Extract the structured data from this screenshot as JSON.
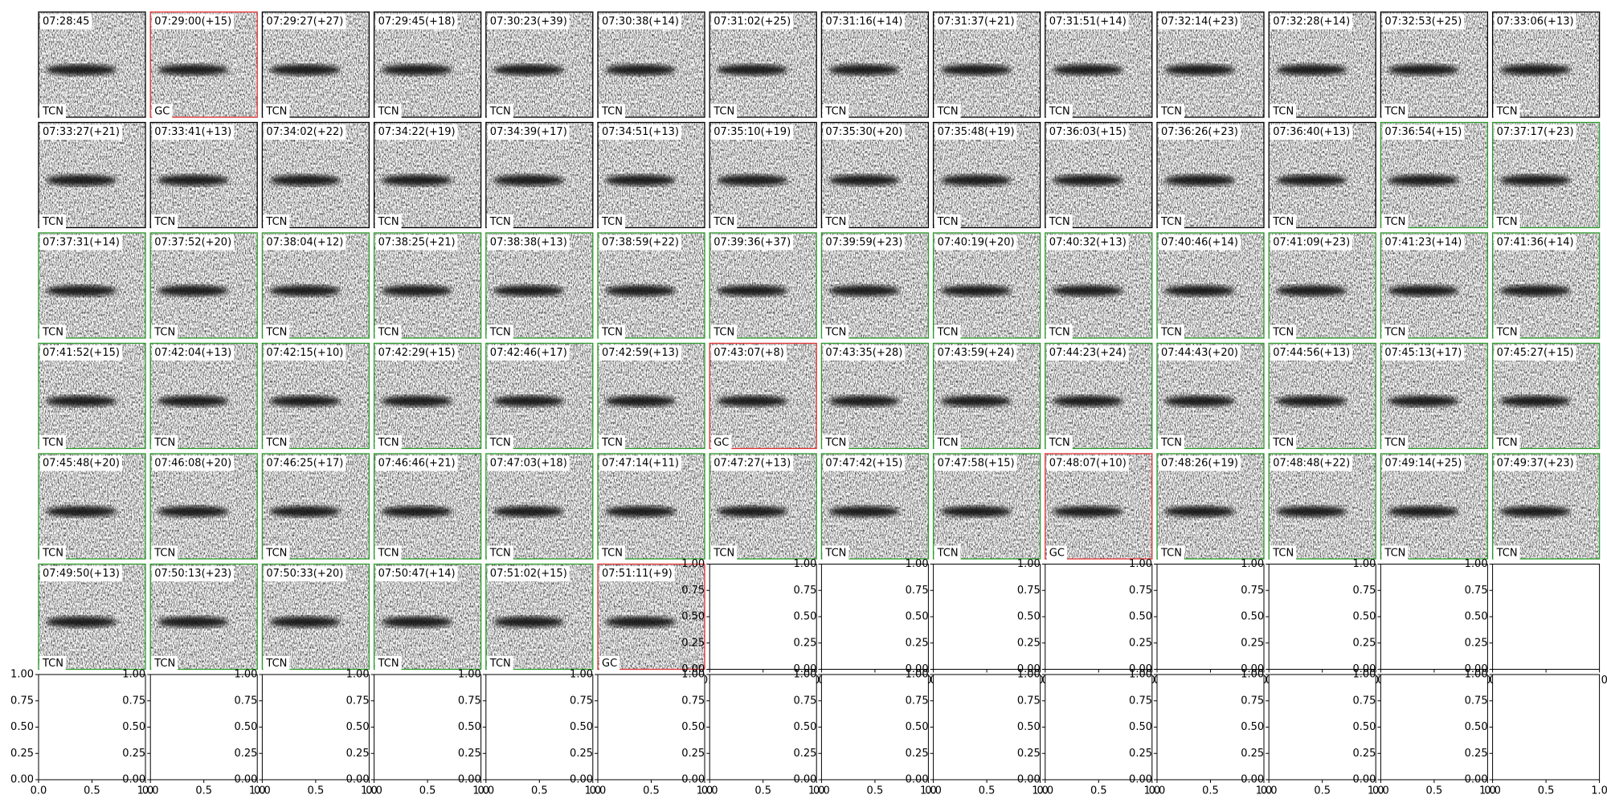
{
  "panels": [
    [
      "07:28:45",
      "TCN",
      "black"
    ],
    [
      "07:29:00(+15)",
      "GC",
      "red"
    ],
    [
      "07:29:27(+27)",
      "TCN",
      "black"
    ],
    [
      "07:29:45(+18)",
      "TCN",
      "black"
    ],
    [
      "07:30:23(+39)",
      "TCN",
      "black"
    ],
    [
      "07:30:38(+14)",
      "TCN",
      "black"
    ],
    [
      "07:31:02(+25)",
      "TCN",
      "black"
    ],
    [
      "07:31:16(+14)",
      "TCN",
      "black"
    ],
    [
      "07:31:37(+21)",
      "TCN",
      "black"
    ],
    [
      "07:31:51(+14)",
      "TCN",
      "black"
    ],
    [
      "07:32:14(+23)",
      "TCN",
      "black"
    ],
    [
      "07:32:28(+14)",
      "TCN",
      "black"
    ],
    [
      "07:32:53(+25)",
      "TCN",
      "black"
    ],
    [
      "07:33:06(+13)",
      "TCN",
      "black"
    ],
    [
      "07:33:27(+21)",
      "TCN",
      "black"
    ],
    [
      "07:33:41(+13)",
      "TCN",
      "black"
    ],
    [
      "07:34:02(+22)",
      "TCN",
      "black"
    ],
    [
      "07:34:22(+19)",
      "TCN",
      "black"
    ],
    [
      "07:34:39(+17)",
      "TCN",
      "black"
    ],
    [
      "07:34:51(+13)",
      "TCN",
      "black"
    ],
    [
      "07:35:10(+19)",
      "TCN",
      "black"
    ],
    [
      "07:35:30(+20)",
      "TCN",
      "black"
    ],
    [
      "07:35:48(+19)",
      "TCN",
      "black"
    ],
    [
      "07:36:03(+15)",
      "TCN",
      "black"
    ],
    [
      "07:36:26(+23)",
      "TCN",
      "black"
    ],
    [
      "07:36:40(+13)",
      "TCN",
      "black"
    ],
    [
      "07:36:54(+15)",
      "TCN",
      "green"
    ],
    [
      "07:37:17(+23)",
      "TCN",
      "green"
    ],
    [
      "07:37:31(+14)",
      "TCN",
      "green"
    ],
    [
      "07:37:52(+20)",
      "TCN",
      "green"
    ],
    [
      "07:38:04(+12)",
      "TCN",
      "green"
    ],
    [
      "07:38:25(+21)",
      "TCN",
      "green"
    ],
    [
      "07:38:38(+13)",
      "TCN",
      "green"
    ],
    [
      "07:38:59(+22)",
      "TCN",
      "green"
    ],
    [
      "07:39:36(+37)",
      "TCN",
      "green"
    ],
    [
      "07:39:59(+23)",
      "TCN",
      "green"
    ],
    [
      "07:40:19(+20)",
      "TCN",
      "green"
    ],
    [
      "07:40:32(+13)",
      "TCN",
      "green"
    ],
    [
      "07:40:46(+14)",
      "TCN",
      "green"
    ],
    [
      "07:41:09(+23)",
      "TCN",
      "green"
    ],
    [
      "07:41:23(+14)",
      "TCN",
      "green"
    ],
    [
      "07:41:36(+14)",
      "TCN",
      "green"
    ],
    [
      "07:41:52(+15)",
      "TCN",
      "green"
    ],
    [
      "07:42:04(+13)",
      "TCN",
      "green"
    ],
    [
      "07:42:15(+10)",
      "TCN",
      "green"
    ],
    [
      "07:42:29(+15)",
      "TCN",
      "green"
    ],
    [
      "07:42:46(+17)",
      "TCN",
      "green"
    ],
    [
      "07:42:59(+13)",
      "TCN",
      "green"
    ],
    [
      "07:43:07(+8)",
      "GC",
      "red"
    ],
    [
      "07:43:35(+28)",
      "TCN",
      "green"
    ],
    [
      "07:43:59(+24)",
      "TCN",
      "green"
    ],
    [
      "07:44:23(+24)",
      "TCN",
      "green"
    ],
    [
      "07:44:43(+20)",
      "TCN",
      "green"
    ],
    [
      "07:44:56(+13)",
      "TCN",
      "green"
    ],
    [
      "07:45:13(+17)",
      "TCN",
      "green"
    ],
    [
      "07:45:27(+15)",
      "TCN",
      "green"
    ],
    [
      "07:45:48(+20)",
      "TCN",
      "green"
    ],
    [
      "07:46:08(+20)",
      "TCN",
      "green"
    ],
    [
      "07:46:25(+17)",
      "TCN",
      "green"
    ],
    [
      "07:46:46(+21)",
      "TCN",
      "green"
    ],
    [
      "07:47:03(+18)",
      "TCN",
      "green"
    ],
    [
      "07:47:14(+11)",
      "TCN",
      "green"
    ],
    [
      "07:47:27(+13)",
      "TCN",
      "green"
    ],
    [
      "07:47:42(+15)",
      "TCN",
      "green"
    ],
    [
      "07:47:58(+15)",
      "TCN",
      "green"
    ],
    [
      "07:48:07(+10)",
      "GC",
      "red"
    ],
    [
      "07:48:26(+19)",
      "TCN",
      "green"
    ],
    [
      "07:48:48(+22)",
      "TCN",
      "green"
    ],
    [
      "07:49:14(+25)",
      "TCN",
      "green"
    ],
    [
      "07:49:37(+23)",
      "TCN",
      "green"
    ],
    [
      "07:49:50(+13)",
      "TCN",
      "green"
    ],
    [
      "07:50:13(+23)",
      "TCN",
      "green"
    ],
    [
      "07:50:33(+20)",
      "TCN",
      "green"
    ],
    [
      "07:50:47(+14)",
      "TCN",
      "green"
    ],
    [
      "07:51:02(+15)",
      "TCN",
      "green"
    ],
    [
      "07:51:11(+9)",
      "GC",
      "red"
    ]
  ],
  "empty_axes": {
    "xticks": [
      "0.0",
      "0.5",
      "1.0"
    ],
    "yticks": [
      "0.00",
      "0.25",
      "0.50",
      "0.75",
      "1.00"
    ]
  }
}
